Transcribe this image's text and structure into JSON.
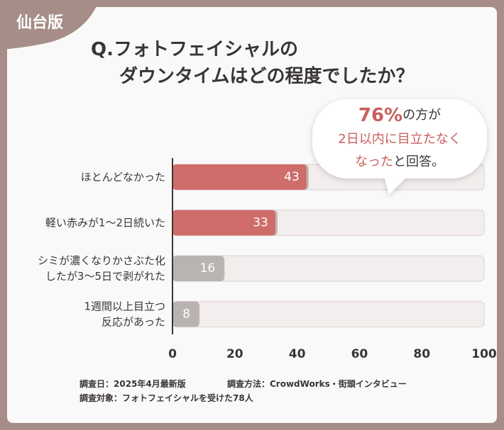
{
  "badge": "仙台版",
  "chart_data": {
    "type": "hbar",
    "title": [
      "Q.フォトフェイシャルの",
      "ダウンタイムはどの程度でしたか？"
    ],
    "categories": [
      [
        "ほとんどなかった"
      ],
      [
        "軽い赤みが1〜2日続いた"
      ],
      [
        "シミが濃くなりかさぶた化",
        "したが3〜5日で剥がれた"
      ],
      [
        "1週間以上目立つ",
        "反応があった"
      ]
    ],
    "values": [
      43,
      33,
      16,
      8
    ],
    "colors": [
      "#cf6d6b",
      "#cf6d6b",
      "#b9b3b2",
      "#b9b3b2"
    ],
    "track_color": "#f3eeed",
    "xlim": [
      0,
      100
    ],
    "xticks": [
      0,
      20,
      40,
      60,
      80,
      100
    ],
    "callout": {
      "highlight_color": "#c9605d",
      "lines": [
        [
          {
            "text": "76%",
            "highlight": true,
            "big": true
          },
          {
            "text": "の方が"
          }
        ],
        [
          {
            "text": "2日以内に目立たなく",
            "highlight": true
          }
        ],
        [
          {
            "text": "なった",
            "highlight": true
          },
          {
            "text": "と回答。"
          }
        ]
      ]
    }
  },
  "footnotes": [
    [
      "調査日：2025年4月最新版",
      "調査方法：CrowdWorks・街頭インタビュー"
    ],
    [
      "調査対象：フォトフェイシャルを受けた78人"
    ]
  ]
}
